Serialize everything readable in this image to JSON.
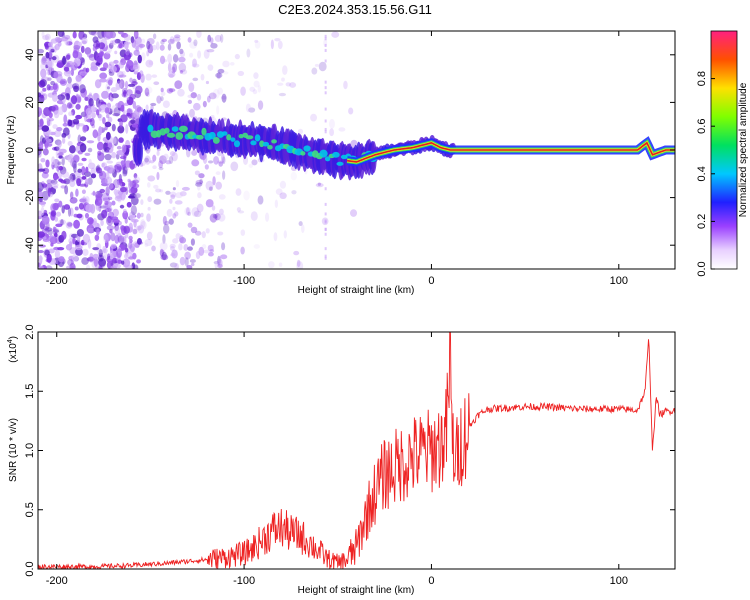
{
  "title": "C2E3.2024.353.15.56.G11",
  "colors": {
    "snr_line": "#ee2222",
    "spectrogram_ridge": "#dd2222",
    "noise": "#8833dd"
  },
  "chart_data": [
    {
      "type": "heatmap",
      "xlabel": "Height of straight line (km)",
      "ylabel": "Frequency (Hz)",
      "xlim": [
        -210,
        130
      ],
      "ylim": [
        -50,
        50
      ],
      "x_ticks": [
        -200,
        -100,
        0,
        100
      ],
      "x_tick_labels": [
        "-200",
        "-100",
        "0",
        "100"
      ],
      "y_ticks": [
        -40,
        -20,
        0,
        20,
        40
      ],
      "y_tick_labels": [
        "-40",
        "-20",
        "0",
        "20",
        "40"
      ],
      "colorbar": {
        "label": "Normalized spectral amplitude",
        "range": [
          0,
          1
        ],
        "ticks": [
          0.0,
          0.2,
          0.4,
          0.6,
          0.8
        ],
        "tick_labels": [
          "0.0",
          "0.2",
          "0.4",
          "0.6",
          "0.8"
        ]
      },
      "ridge": {
        "x": [
          -155,
          -140,
          -125,
          -110,
          -95,
          -80,
          -70,
          -60,
          -50,
          -40,
          -30,
          -20,
          -10,
          0,
          5,
          10,
          20,
          40,
          60,
          80,
          100,
          110,
          115,
          118,
          125,
          130
        ],
        "y": [
          9,
          8,
          6,
          5,
          4,
          2,
          0,
          -3,
          -4,
          -5,
          -2,
          0,
          1,
          3,
          1,
          0,
          0,
          0,
          0,
          0,
          0,
          0,
          3,
          -2,
          0,
          0
        ]
      }
    },
    {
      "type": "line",
      "xlabel": "Height of straight line (km)",
      "ylabel": "SNR (10 * v/v)",
      "y_multiplier_label": "(x10",
      "y_multiplier_exp": "4",
      "y_multiplier_close": ")",
      "xlim": [
        -210,
        130
      ],
      "ylim": [
        0,
        2.0
      ],
      "x_ticks": [
        -200,
        -100,
        0,
        100
      ],
      "x_tick_labels": [
        "-200",
        "-100",
        "0",
        "100"
      ],
      "y_ticks": [
        0,
        0.5,
        1.0,
        1.5,
        2.0
      ],
      "y_tick_labels": [
        "0.0",
        "0.5",
        "1.0",
        "1.5",
        "2.0"
      ],
      "series": [
        {
          "x": [
            -210,
            -180,
            -160,
            -140,
            -120,
            -110,
            -100,
            -95,
            -90,
            -85,
            -80,
            -75,
            -70,
            -65,
            -60,
            -55,
            -50,
            -45,
            -40,
            -35,
            -30,
            -25,
            -20,
            -15,
            -10,
            -5,
            0,
            5,
            8,
            10,
            11,
            12,
            13,
            15,
            20,
            25,
            30,
            40,
            50,
            60,
            70,
            80,
            90,
            100,
            110,
            114,
            116,
            118,
            120,
            122,
            125,
            130
          ],
          "y": [
            0.02,
            0.02,
            0.03,
            0.05,
            0.08,
            0.1,
            0.13,
            0.18,
            0.25,
            0.32,
            0.35,
            0.3,
            0.28,
            0.22,
            0.15,
            0.08,
            0.05,
            0.08,
            0.18,
            0.45,
            0.65,
            0.8,
            0.85,
            0.9,
            0.95,
            0.98,
            1.0,
            1.05,
            1.15,
            1.75,
            1.1,
            1.0,
            0.9,
            1.05,
            1.2,
            1.3,
            1.35,
            1.36,
            1.37,
            1.37,
            1.36,
            1.35,
            1.35,
            1.35,
            1.34,
            1.5,
            1.95,
            1.0,
            1.45,
            1.3,
            1.33,
            1.34
          ]
        }
      ]
    }
  ]
}
